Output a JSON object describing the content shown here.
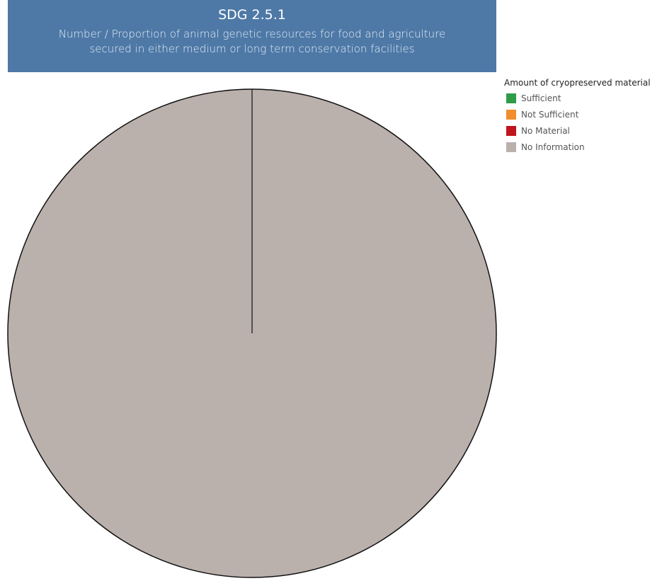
{
  "header": {
    "title": "SDG 2.5.1",
    "subtitle_line1": "Number / Proportion of animal genetic resources for food and agriculture",
    "subtitle_line2": "secured in either medium or long term conservation facilities"
  },
  "legend": {
    "title": "Amount of cryopreserved material",
    "items": [
      {
        "label": "Sufficient",
        "color": "#2e9c48"
      },
      {
        "label": "Not Sufficient",
        "color": "#f28e2b"
      },
      {
        "label": "No Material",
        "color": "#c0141e"
      },
      {
        "label": "No Information",
        "color": "#bab0ac"
      }
    ]
  },
  "chart_data": {
    "type": "pie",
    "title": "SDG 2.5.1",
    "categories": [
      "Sufficient",
      "Not Sufficient",
      "No Material",
      "No Information"
    ],
    "values": [
      0,
      0,
      0,
      100
    ],
    "colors": [
      "#2e9c48",
      "#f28e2b",
      "#c0141e",
      "#bab0ac"
    ],
    "legend_position": "top-right"
  }
}
